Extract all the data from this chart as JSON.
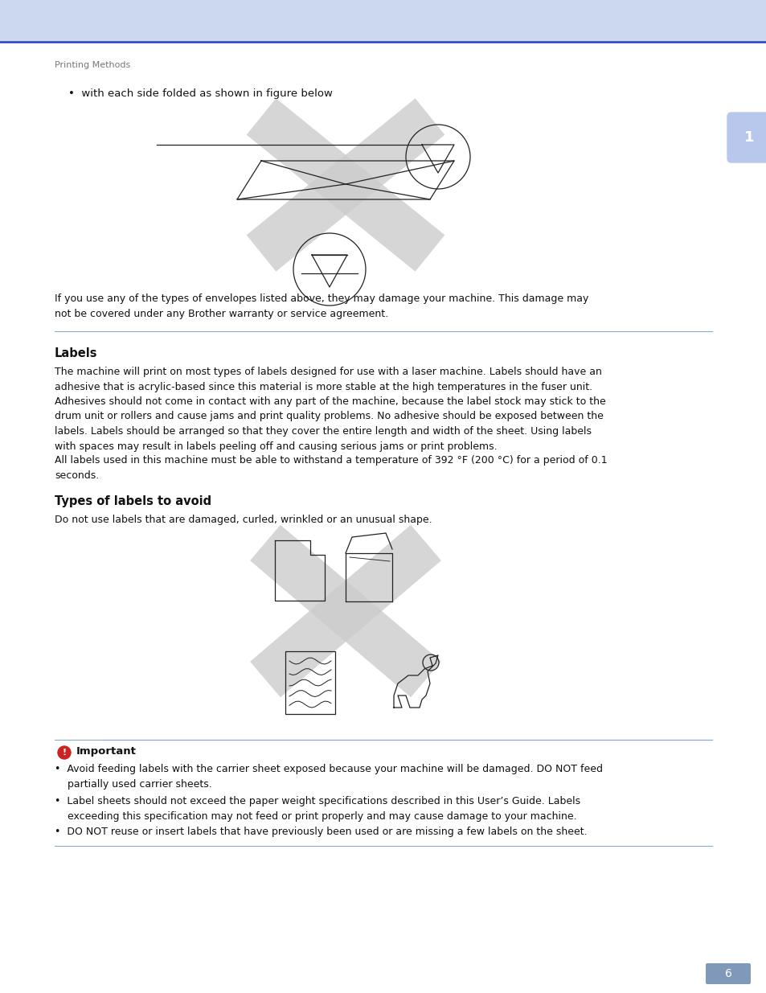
{
  "bg_header_color": "#ccd8f0",
  "bg_body_color": "#ffffff",
  "blue_line_color": "#2244bb",
  "tab_color": "#b8c8ec",
  "tab_text": "1",
  "breadcrumb_text": "Printing Methods",
  "breadcrumb_color": "#777777",
  "breadcrumb_fontsize": 8,
  "bullet1_text": "•  with each side folded as shown in figure below",
  "bullet1_fontsize": 9.5,
  "text_color": "#111111",
  "warning_text": "If you use any of the types of envelopes listed above, they may damage your machine. This damage may\nnot be covered under any Brother warranty or service agreement.",
  "text_fontsize": 9.0,
  "sep_line_color": "#88aacc",
  "labels_heading": "Labels",
  "labels_heading_fontsize": 10.5,
  "labels_body": "The machine will print on most types of labels designed for use with a laser machine. Labels should have an\nadhesive that is acrylic-based since this material is more stable at the high temperatures in the fuser unit.\nAdhesives should not come in contact with any part of the machine, because the label stock may stick to the\ndrum unit or rollers and cause jams and print quality problems. No adhesive should be exposed between the\nlabels. Labels should be arranged so that they cover the entire length and width of the sheet. Using labels\nwith spaces may result in labels peeling off and causing serious jams or print problems.",
  "labels_body2": "All labels used in this machine must be able to withstand a temperature of 392 °F (200 °C) for a period of 0.1\nseconds.",
  "types_heading": "Types of labels to avoid",
  "types_body": "Do not use labels that are damaged, curled, wrinkled or an unusual shape.",
  "important_heading": "Important",
  "important_body1": "•  Avoid feeding labels with the carrier sheet exposed because your machine will be damaged. DO NOT feed\n    partially used carrier sheets.",
  "important_body2": "•  Label sheets should not exceed the paper weight specifications described in this User’s Guide. Labels\n    exceeding this specification may not feed or print properly and may cause damage to your machine.",
  "important_body3": "•  DO NOT reuse or insert labels that have previously been used or are missing a few labels on the sheet.",
  "page_number": "6",
  "page_number_bg": "#8099bb",
  "cross_color": "#cccccc",
  "draw_color": "#222222",
  "lw_draw": 0.9
}
